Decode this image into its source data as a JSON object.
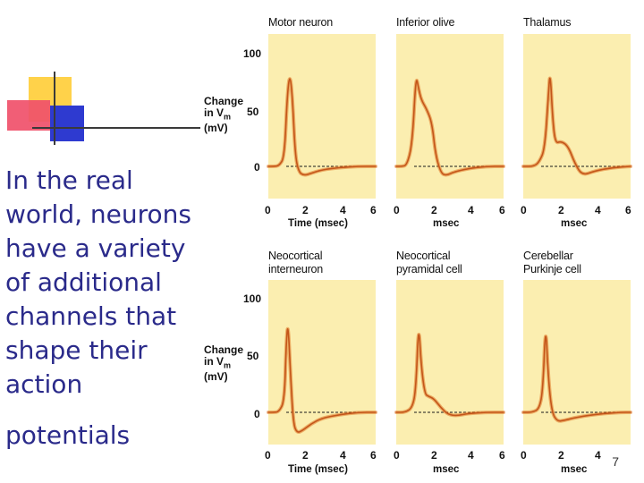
{
  "slide": {
    "body_text": "In the real world, neurons have a variety of additional channels that shape their action",
    "body_text_2": "potentials",
    "page_number": "7"
  },
  "colors": {
    "panel_bg": "#fbeeb0",
    "trace": "#e07a28",
    "trace_dark": "#c4561a",
    "baseline": "#1a1a1a",
    "text_blue": "#2a2a8a",
    "deco_yellow": "#ffd24a",
    "deco_red": "#f0506a",
    "deco_blue": "#2e3ad0"
  },
  "figure": {
    "y_axis_label_lines": [
      "Change",
      "in V",
      "m",
      "(mV)"
    ],
    "y_ticks": [
      "100",
      "50",
      "0"
    ],
    "x_ticks": [
      "0",
      "2",
      "4",
      "6"
    ],
    "xlabel_first": "Time (msec)",
    "xlabel_other": "msec"
  },
  "chart_data": [
    {
      "type": "line",
      "title": "Motor neuron",
      "xlabel": "Time (msec)",
      "ylabel": "Change in Vm (mV)",
      "xlim": [
        0,
        6
      ],
      "ylim": [
        -10,
        110
      ],
      "series": [
        {
          "x": [
            0,
            0.3,
            0.6,
            0.9,
            1.05,
            1.2,
            1.35,
            1.5,
            1.7,
            2.0,
            2.4,
            3.0,
            4.0,
            5.0,
            6.0
          ],
          "y": [
            0,
            0,
            0.5,
            8,
            60,
            82,
            60,
            10,
            -5,
            -8,
            -6,
            -3,
            -1,
            0,
            0
          ]
        }
      ]
    },
    {
      "type": "line",
      "title": "Inferior olive",
      "xlabel": "msec",
      "ylabel": "Change in Vm (mV)",
      "xlim": [
        0,
        6
      ],
      "ylim": [
        -10,
        110
      ],
      "series": [
        {
          "x": [
            0,
            0.3,
            0.6,
            0.9,
            1.1,
            1.25,
            1.4,
            1.7,
            2.0,
            2.2,
            2.5,
            2.8,
            3.2,
            4.0,
            5.0,
            6.0
          ],
          "y": [
            0,
            0,
            1,
            20,
            80,
            68,
            58,
            50,
            38,
            10,
            -6,
            -8,
            -5,
            -2,
            0,
            0
          ]
        }
      ]
    },
    {
      "type": "line",
      "title": "Thalamus",
      "xlabel": "msec",
      "ylabel": "Change in Vm (mV)",
      "xlim": [
        0,
        6
      ],
      "ylim": [
        -10,
        110
      ],
      "series": [
        {
          "x": [
            0,
            0.6,
            0.9,
            1.2,
            1.4,
            1.5,
            1.65,
            1.8,
            2.1,
            2.5,
            2.9,
            3.3,
            4.0,
            5.0,
            6.0
          ],
          "y": [
            0,
            0,
            4,
            15,
            60,
            85,
            40,
            20,
            22,
            18,
            2,
            -8,
            -4,
            -1,
            0
          ]
        }
      ]
    },
    {
      "type": "line",
      "title": "Neocortical interneuron",
      "xlabel": "Time (msec)",
      "ylabel": "Change in Vm (mV)",
      "xlim": [
        0,
        6
      ],
      "ylim": [
        -10,
        110
      ],
      "series": [
        {
          "x": [
            0,
            0.3,
            0.6,
            0.9,
            1.0,
            1.1,
            1.25,
            1.4,
            1.6,
            1.9,
            2.4,
            3.0,
            4.0,
            5.0,
            6.0
          ],
          "y": [
            0,
            0,
            0.5,
            10,
            60,
            80,
            30,
            -10,
            -18,
            -16,
            -10,
            -5,
            -2,
            0,
            0
          ]
        }
      ]
    },
    {
      "type": "line",
      "title": "Neocortical pyramidal cell",
      "xlabel": "msec",
      "ylabel": "Change in Vm (mV)",
      "xlim": [
        0,
        6
      ],
      "ylim": [
        -10,
        110
      ],
      "series": [
        {
          "x": [
            0,
            0.5,
            0.9,
            1.1,
            1.25,
            1.4,
            1.6,
            1.8,
            2.1,
            2.5,
            2.9,
            3.4,
            4.0,
            5.0,
            6.0
          ],
          "y": [
            0,
            0,
            4,
            20,
            80,
            40,
            16,
            14,
            12,
            4,
            -2,
            -3,
            -1,
            0,
            0
          ]
        }
      ]
    },
    {
      "type": "line",
      "title": "Cerebellar Purkinje cell",
      "xlabel": "msec",
      "ylabel": "Change in Vm (mV)",
      "xlim": [
        0,
        6
      ],
      "ylim": [
        -10,
        110
      ],
      "series": [
        {
          "x": [
            0,
            0.5,
            0.9,
            1.1,
            1.25,
            1.4,
            1.6,
            1.9,
            2.3,
            2.8,
            3.5,
            4.5,
            5.5,
            6.0
          ],
          "y": [
            0,
            0,
            3,
            20,
            80,
            30,
            0,
            -8,
            -7,
            -5,
            -3,
            -1,
            0,
            0
          ]
        }
      ]
    }
  ]
}
